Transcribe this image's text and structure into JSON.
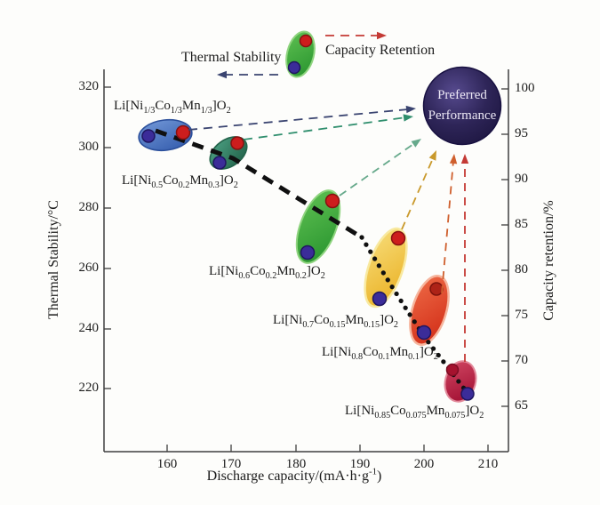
{
  "chart_data": {
    "type": "scatter",
    "title": "",
    "xlabel": "Discharge capacity/(mA·h·g^{-1})",
    "ylabel_left": "Thermal Stability/°C",
    "ylabel_right": "Capacity retention/%",
    "x_ticks": [
      "160",
      "170",
      "180",
      "190",
      "200",
      "210"
    ],
    "y_left_ticks": [
      "320",
      "300",
      "280",
      "260",
      "240",
      "220"
    ],
    "y_right_ticks": [
      "100",
      "95",
      "90",
      "85",
      "80",
      "75",
      "70",
      "65"
    ],
    "xlim": [
      150,
      213
    ],
    "ylim_left": [
      200,
      326
    ],
    "ylim_right": [
      60,
      102
    ],
    "grid": false,
    "series": [
      {
        "label": "Li[Ni_{1/3}Co_{1/3}Mn_{1/3}]O_{2}",
        "ellipse_color": "#4a78c5",
        "thermal_stability_C": 304,
        "discharge_capacity_at_thermal": 157,
        "capacity_retention_pct": 95,
        "discharge_capacity_at_retention": 162
      },
      {
        "label": "Li[Ni_{0.5}Co_{0.2}Mn_{0.3}]O_{2}",
        "ellipse_color": "#2f8668",
        "thermal_stability_C": 295,
        "discharge_capacity_at_thermal": 168,
        "capacity_retention_pct": 94,
        "discharge_capacity_at_retention": 171
      },
      {
        "label": "Li[Ni_{0.6}Co_{0.2}Mn_{0.2}]O_{2}",
        "ellipse_color": "#3caa3c",
        "thermal_stability_C": 265,
        "discharge_capacity_at_thermal": 182,
        "capacity_retention_pct": 88,
        "discharge_capacity_at_retention": 186
      },
      {
        "label": "Li[Ni_{0.7}Co_{0.15}Mn_{0.15}]O_{2}",
        "ellipse_color": "#eec13a",
        "thermal_stability_C": 250,
        "discharge_capacity_at_thermal": 193,
        "capacity_retention_pct": 84,
        "discharge_capacity_at_retention": 196
      },
      {
        "label": "Li[Ni_{0.8}Co_{0.1}Mn_{0.1}]O_{2}",
        "ellipse_color": "#e2452a",
        "thermal_stability_C": 238,
        "discharge_capacity_at_thermal": 200,
        "capacity_retention_pct": 78,
        "discharge_capacity_at_retention": 202
      },
      {
        "label": "Li[Ni_{0.85}Co_{0.075}Mn_{0.075}]O_{2}",
        "ellipse_color": "#c42046",
        "thermal_stability_C": 219,
        "discharge_capacity_at_thermal": 207,
        "capacity_retention_pct": 69,
        "discharge_capacity_at_retention": 205
      }
    ],
    "trend_line": {
      "color": "#101010",
      "style": "thick dashed then dotted, descending left-to-right"
    },
    "preferred_node": {
      "lines": [
        "Preferred",
        "Performance"
      ],
      "fill": "#2e2558",
      "label": "Preferred Performance"
    },
    "legend": {
      "thermal_label": "Thermal Stability",
      "thermal_arrow_color": "#3a4470",
      "thermal_arrow_direction": "left",
      "retention_label": "Capacity Retention",
      "retention_arrow_color": "#c43a35",
      "retention_arrow_direction": "right",
      "marker_red_dot_means": "Capacity Retention",
      "marker_blue_dot_means": "Thermal Stability"
    },
    "arrows_to_preferred_colors": [
      "#3a4470",
      "#2f8e6d",
      "#66a98b",
      "#c9992b",
      "#cf5f2d",
      "#c43a35"
    ]
  }
}
